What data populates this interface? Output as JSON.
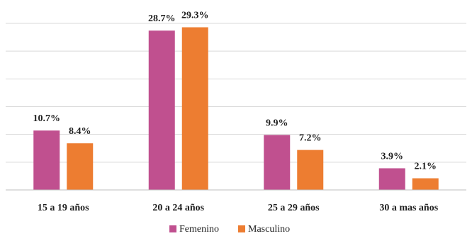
{
  "chart_data": {
    "type": "bar",
    "categories": [
      "15 a 19 años",
      "20 a 24 años",
      "25 a 29 años",
      "30 a mas años"
    ],
    "series": [
      {
        "name": "Femenino",
        "values": [
          10.7,
          28.7,
          9.9,
          3.9
        ],
        "labels": [
          "10.7%",
          "28.7%",
          "9.9%",
          "3.9%"
        ],
        "color": "#c0508f"
      },
      {
        "name": "Masculino",
        "values": [
          8.4,
          29.3,
          7.2,
          2.1
        ],
        "labels": [
          "8.4%",
          "29.3%",
          "7.2%",
          "2.1%"
        ],
        "color": "#ed7d31"
      }
    ],
    "title": "",
    "xlabel": "",
    "ylabel": "",
    "ylim": [
      0,
      30
    ],
    "grid": true,
    "legend_position": "bottom"
  }
}
